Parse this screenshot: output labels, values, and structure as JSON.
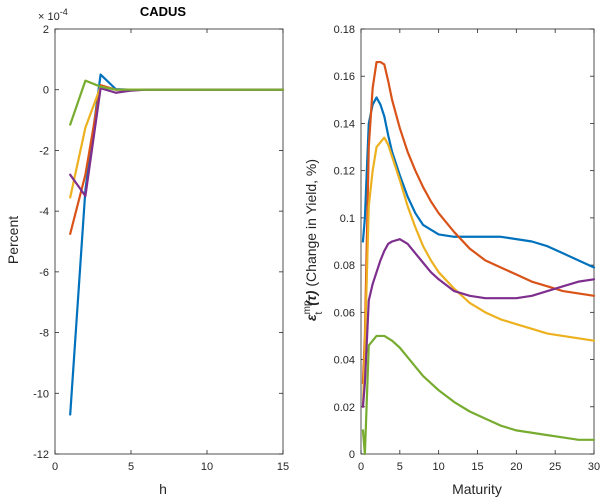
{
  "chart_data": [
    {
      "type": "line",
      "title": "CADUS",
      "xlabel": "h",
      "ylabel": "Percent",
      "exponent_label": "× 10",
      "exponent_power": "-4",
      "xlim": [
        0,
        15
      ],
      "ylim": [
        -12,
        2
      ],
      "xticks": [
        0,
        5,
        10,
        15
      ],
      "yticks": [
        2,
        0,
        -2,
        -4,
        -6,
        -8,
        -10,
        -12
      ],
      "grid": false,
      "legend": "none",
      "series": [
        {
          "color": "#0072BD",
          "x": [
            1,
            2,
            3,
            4,
            5,
            6,
            7,
            8,
            9,
            10,
            11,
            12,
            13,
            14,
            15
          ],
          "values": [
            -10.7,
            -3.3,
            0.5,
            0.02,
            0,
            0,
            0,
            0,
            0,
            0,
            0,
            0,
            0,
            0,
            0
          ]
        },
        {
          "color": "#D95319",
          "x": [
            1,
            2,
            3,
            4,
            5,
            6,
            7,
            8,
            9,
            10,
            11,
            12,
            13,
            14,
            15
          ],
          "values": [
            -4.75,
            -2.8,
            0.15,
            0,
            0,
            0,
            0,
            0,
            0,
            0,
            0,
            0,
            0,
            0,
            0
          ]
        },
        {
          "color": "#EDB120",
          "x": [
            1,
            2,
            3,
            4,
            5,
            6,
            7,
            8,
            9,
            10,
            11,
            12,
            13,
            14,
            15
          ],
          "values": [
            -3.55,
            -1.25,
            0.1,
            0,
            0,
            0,
            0,
            0,
            0,
            0,
            0,
            0,
            0,
            0,
            0
          ]
        },
        {
          "color": "#7E2F8E",
          "x": [
            1,
            2,
            3,
            4,
            5,
            6,
            7,
            8,
            9,
            10,
            11,
            12,
            13,
            14,
            15
          ],
          "values": [
            -2.8,
            -3.5,
            0.05,
            -0.1,
            -0.03,
            0,
            0,
            0,
            0,
            0,
            0,
            0,
            0,
            0,
            0
          ]
        },
        {
          "color": "#77AC30",
          "x": [
            1,
            2,
            3,
            4,
            5,
            6,
            7,
            8,
            9,
            10,
            11,
            12,
            13,
            14,
            15
          ],
          "values": [
            -1.15,
            0.3,
            0.1,
            0,
            0,
            0,
            0,
            0,
            0,
            0,
            0,
            0,
            0,
            0,
            0
          ]
        }
      ]
    },
    {
      "type": "line",
      "title": "",
      "xlabel": "Maturity",
      "ylabel_symbol": "ε",
      "ylabel_sup": "mp",
      "ylabel_sub": "t",
      "ylabel_arg": "(τ)",
      "ylabel_text": "(Change in Yield, %)",
      "xlim": [
        0,
        30
      ],
      "ylim": [
        0,
        0.18
      ],
      "xticks": [
        0,
        5,
        10,
        15,
        20,
        25,
        30
      ],
      "yticks": [
        0,
        0.02,
        0.04,
        0.06,
        0.08,
        0.1,
        0.12,
        0.14,
        0.16,
        0.18
      ],
      "grid": false,
      "legend": "none",
      "series": [
        {
          "color": "#0072BD",
          "x": [
            0.25,
            0.5,
            1,
            1.5,
            2,
            2.5,
            3,
            3.5,
            4,
            5,
            6,
            7,
            8,
            9,
            10,
            12,
            14,
            16,
            18,
            20,
            22,
            24,
            26,
            28,
            30
          ],
          "values": [
            0.09,
            0.1,
            0.14,
            0.148,
            0.151,
            0.148,
            0.143,
            0.135,
            0.128,
            0.118,
            0.109,
            0.102,
            0.097,
            0.095,
            0.093,
            0.092,
            0.092,
            0.092,
            0.092,
            0.091,
            0.09,
            0.088,
            0.085,
            0.082,
            0.079
          ]
        },
        {
          "color": "#D95319",
          "x": [
            0.25,
            0.5,
            1,
            1.5,
            2,
            2.5,
            3,
            3.5,
            4,
            5,
            6,
            7,
            8,
            9,
            10,
            12,
            14,
            16,
            18,
            20,
            22,
            24,
            26,
            28,
            30
          ],
          "values": [
            0.03,
            0.05,
            0.13,
            0.155,
            0.166,
            0.166,
            0.165,
            0.158,
            0.15,
            0.138,
            0.128,
            0.12,
            0.113,
            0.107,
            0.102,
            0.094,
            0.087,
            0.082,
            0.079,
            0.076,
            0.073,
            0.071,
            0.069,
            0.068,
            0.067
          ]
        },
        {
          "color": "#EDB120",
          "x": [
            0.25,
            0.5,
            1,
            1.5,
            2,
            2.5,
            3,
            3.5,
            4,
            5,
            6,
            7,
            8,
            9,
            10,
            12,
            14,
            16,
            18,
            20,
            22,
            24,
            26,
            28,
            30
          ],
          "values": [
            0.02,
            0.045,
            0.105,
            0.12,
            0.13,
            0.132,
            0.134,
            0.131,
            0.126,
            0.116,
            0.105,
            0.096,
            0.088,
            0.082,
            0.077,
            0.07,
            0.064,
            0.06,
            0.057,
            0.055,
            0.053,
            0.051,
            0.05,
            0.049,
            0.048
          ]
        },
        {
          "color": "#7E2F8E",
          "x": [
            0.25,
            0.5,
            1,
            1.5,
            2,
            2.5,
            3,
            3.5,
            4,
            5,
            6,
            7,
            8,
            9,
            10,
            12,
            14,
            16,
            18,
            20,
            22,
            24,
            26,
            28,
            30
          ],
          "values": [
            0.02,
            0.03,
            0.065,
            0.072,
            0.077,
            0.082,
            0.086,
            0.089,
            0.09,
            0.091,
            0.089,
            0.085,
            0.081,
            0.077,
            0.074,
            0.069,
            0.067,
            0.066,
            0.066,
            0.066,
            0.067,
            0.069,
            0.071,
            0.073,
            0.074
          ]
        },
        {
          "color": "#77AC30",
          "x": [
            0.25,
            0.5,
            1,
            1.5,
            2,
            2.5,
            3,
            3.5,
            4,
            5,
            6,
            7,
            8,
            9,
            10,
            12,
            14,
            16,
            18,
            20,
            22,
            24,
            26,
            28,
            30
          ],
          "values": [
            0.01,
            0.0,
            0.046,
            0.048,
            0.05,
            0.05,
            0.05,
            0.049,
            0.048,
            0.045,
            0.041,
            0.037,
            0.033,
            0.03,
            0.027,
            0.022,
            0.018,
            0.015,
            0.012,
            0.01,
            0.009,
            0.008,
            0.007,
            0.006,
            0.006
          ]
        }
      ]
    }
  ]
}
